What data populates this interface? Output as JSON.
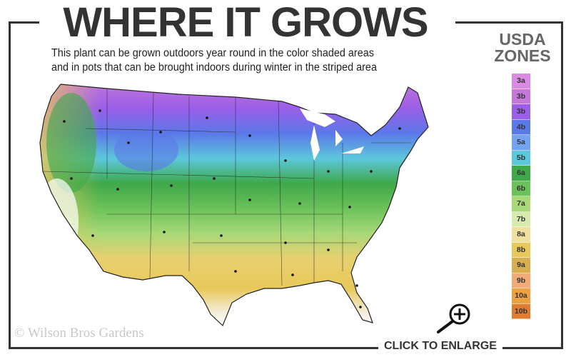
{
  "header": {
    "title": "WHERE IT GROWS",
    "subtitle_line1": "This plant can be grown outdoors year round in the color shaded areas",
    "subtitle_line2": "and in pots that can be brought indoors during winter in the striped area"
  },
  "legend": {
    "title_line1": "USDA",
    "title_line2": "ZONES",
    "zones": [
      {
        "label": "3a",
        "color": "#d88be0"
      },
      {
        "label": "3b",
        "color": "#c678d8"
      },
      {
        "label": "3b",
        "color": "#9a5ee8"
      },
      {
        "label": "4b",
        "color": "#5b78e8"
      },
      {
        "label": "5a",
        "color": "#72a4f2"
      },
      {
        "label": "5b",
        "color": "#5cc8dc"
      },
      {
        "label": "6a",
        "color": "#3ea84a"
      },
      {
        "label": "6b",
        "color": "#6cc25a"
      },
      {
        "label": "7a",
        "color": "#a8d878"
      },
      {
        "label": "7b",
        "color": "#d6ecae"
      },
      {
        "label": "8a",
        "color": "#f0e0a0"
      },
      {
        "label": "8b",
        "color": "#e8c85a"
      },
      {
        "label": "9a",
        "color": "#d9ae50"
      },
      {
        "label": "9b",
        "color": "#f2aa78"
      },
      {
        "label": "10a",
        "color": "#eea040"
      },
      {
        "label": "10b",
        "color": "#e07c30"
      }
    ]
  },
  "watermark": "© Wilson Bros Gardens",
  "enlarge": {
    "label": "CLICK TO ENLARGE",
    "icon": "zoom-in-icon"
  }
}
